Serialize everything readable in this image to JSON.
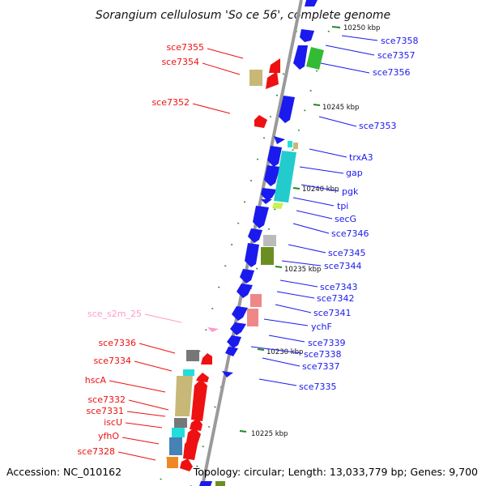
{
  "title": "Sorangium cellulosum 'So ce 56', complete genome",
  "footer": {
    "accession": "Accession: NC_010162",
    "summary": "Topology: circular; Length: 13,033,779 bp; Genes: 9,700"
  },
  "colors": {
    "forward_gene": "#1a1aee",
    "reverse_gene": "#ee1111",
    "rna_gene": "#ffaacc",
    "backbone": "#9a9a9a",
    "tick": "#228822"
  },
  "kbp_ticks": [
    "10250 kbp",
    "10245 kbp",
    "10240 kbp",
    "10235 kbp",
    "10230 kbp",
    "10225 kbp"
  ],
  "genes_right": [
    "sce7358",
    "sce7357",
    "sce7356",
    "sce7353",
    "trxA3",
    "gap",
    "pgk",
    "tpi",
    "secG",
    "sce7346",
    "sce7345",
    "sce7344",
    "sce7343",
    "sce7342",
    "sce7341",
    "ychF",
    "sce7339",
    "sce7338",
    "sce7337",
    "sce7335"
  ],
  "genes_left": [
    "sce7355",
    "sce7354",
    "sce7352",
    "sce7336",
    "sce7334",
    "hscA",
    "sce7332",
    "sce7331",
    "iscU",
    "yfhO",
    "sce7328"
  ],
  "genes_rna": [
    "sce_s2m_25"
  ]
}
